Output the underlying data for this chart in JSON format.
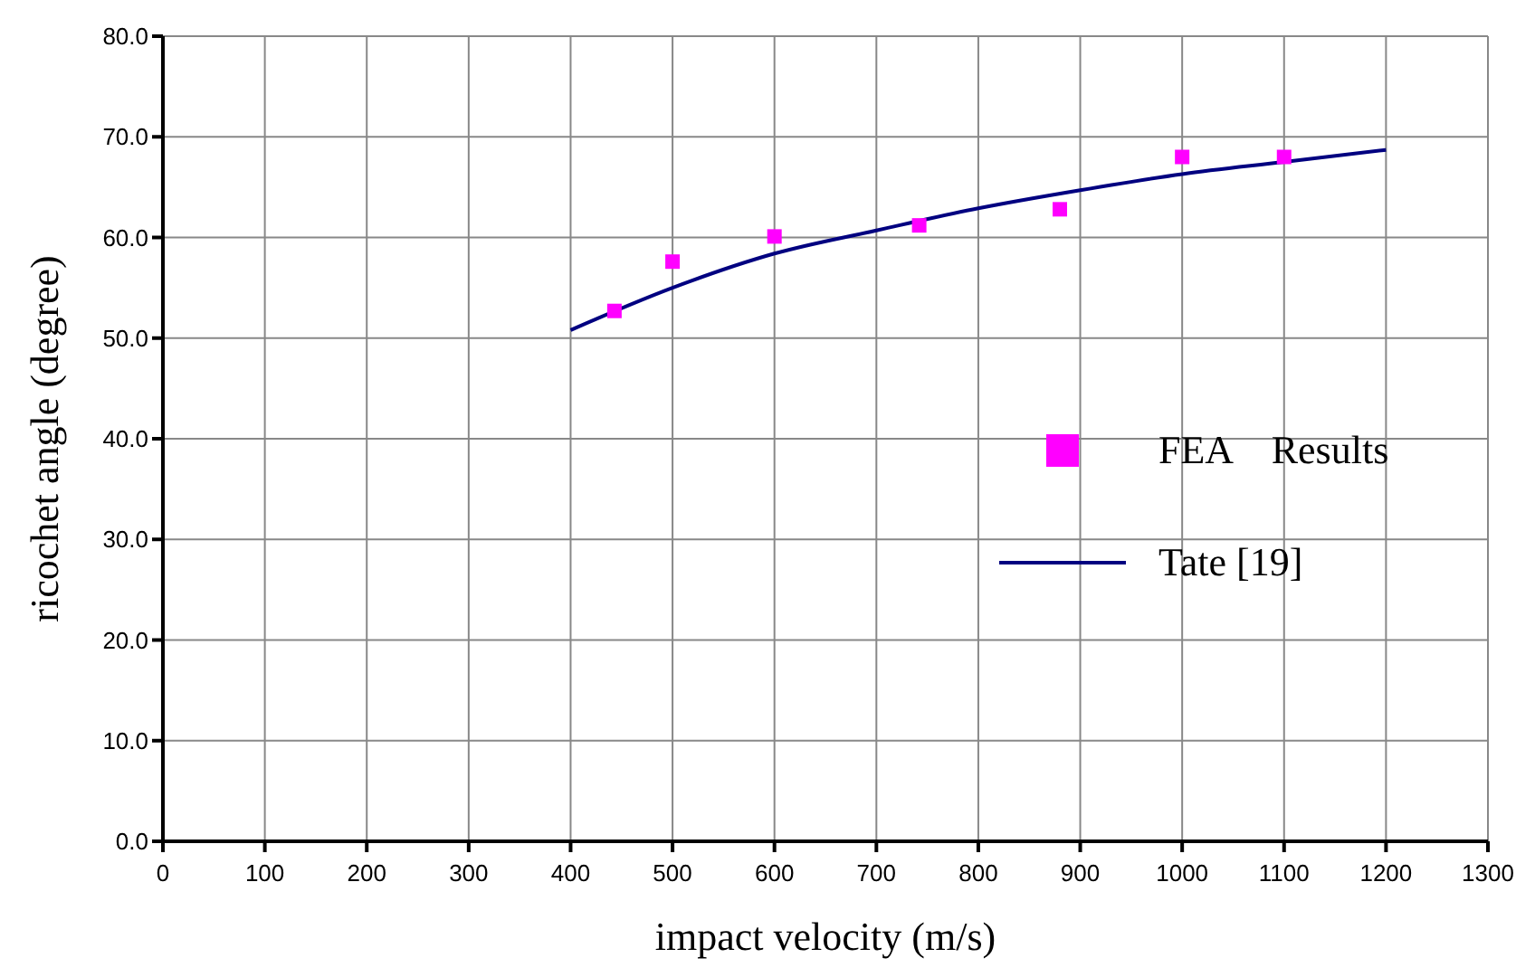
{
  "chart_data": {
    "type": "scatter",
    "xlabel": "impact velocity (m/s)",
    "ylabel": "ricochet angle (degree)",
    "xlim": [
      0,
      1300
    ],
    "xticks": [
      0,
      100,
      200,
      300,
      400,
      500,
      600,
      700,
      800,
      900,
      1000,
      1100,
      1200,
      1300
    ],
    "ylim": [
      0,
      80
    ],
    "yticks": [
      {
        "value": 0,
        "label": "0.0"
      },
      {
        "value": 10,
        "label": "10.0"
      },
      {
        "value": 20,
        "label": "20.0"
      },
      {
        "value": 30,
        "label": "30.0"
      },
      {
        "value": 40,
        "label": "40.0"
      },
      {
        "value": 50,
        "label": "50.0"
      },
      {
        "value": 60,
        "label": "60.0"
      },
      {
        "value": 70,
        "label": "70.0"
      },
      {
        "value": 80,
        "label": "80.0"
      }
    ],
    "grid": true,
    "legend": "right",
    "series": [
      {
        "name": "FEA　Results",
        "marker": "square",
        "color": "#ff00ff",
        "x": [
          443,
          500,
          600,
          742,
          880,
          1000,
          1100
        ],
        "values": [
          52.7,
          57.6,
          60.1,
          61.2,
          62.8,
          68.0,
          68.0
        ]
      },
      {
        "name": "Tate [19]",
        "type": "line",
        "marker": "none",
        "line_style": "solid",
        "color": "#000080",
        "x": [
          400,
          500,
          600,
          700,
          800,
          900,
          1000,
          1100,
          1200
        ],
        "values": [
          50.8,
          55.0,
          58.4,
          60.7,
          62.9,
          64.7,
          66.3,
          67.5,
          68.7
        ]
      }
    ]
  }
}
